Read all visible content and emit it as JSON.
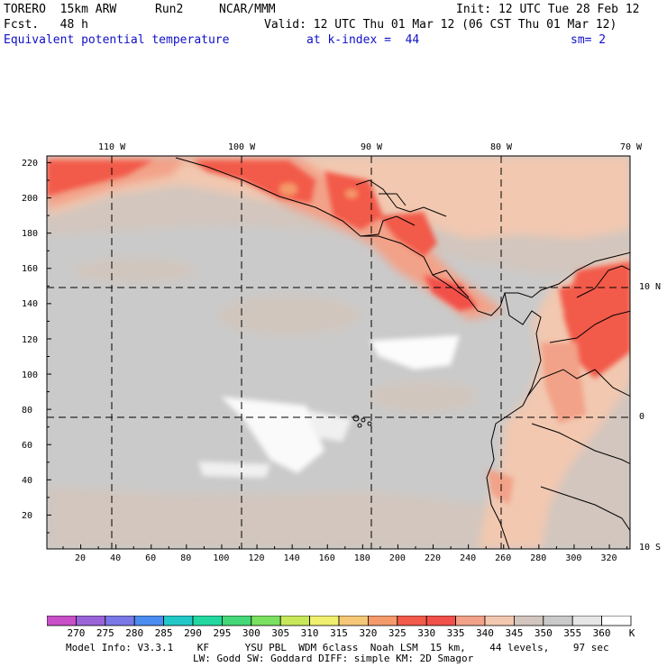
{
  "header": {
    "model": "TORERO  15km ARW",
    "run": "Run2",
    "org": "NCAR/MMM",
    "init": "Init: 12 UTC Tue 28 Feb 12",
    "fcst": "Fcst.   48 h",
    "valid": "Valid: 12 UTC Thu 01 Mar 12 (06 CST Thu 01 Mar 12)",
    "field": "Equivalent potential temperature",
    "level": "at k-index =  44",
    "smooth": "sm= 2"
  },
  "map": {
    "lon_labels": [
      "110 W",
      "100 W",
      "90 W",
      "80 W",
      "70 W"
    ],
    "lat_labels": [
      "10 N",
      "0",
      "10 S"
    ],
    "y_ticks": [
      "220",
      "200",
      "180",
      "160",
      "140",
      "120",
      "100",
      "80",
      "60",
      "40",
      "20"
    ],
    "x_ticks": [
      "20",
      "40",
      "60",
      "80",
      "100",
      "120",
      "140",
      "160",
      "180",
      "200",
      "220",
      "240",
      "260",
      "280",
      "300",
      "320"
    ]
  },
  "colorbar": {
    "labels": [
      "270",
      "275",
      "280",
      "285",
      "290",
      "295",
      "300",
      "305",
      "310",
      "315",
      "320",
      "325",
      "330",
      "335",
      "340",
      "345",
      "350",
      "355",
      "360"
    ],
    "unit": "K",
    "colors": [
      "#c84fc8",
      "#9a64d8",
      "#7a78e6",
      "#4a8cf0",
      "#22c8c8",
      "#22d8a0",
      "#44d878",
      "#7ae060",
      "#c8e85a",
      "#f0f070",
      "#f5c878",
      "#f59a6a",
      "#f25a4a",
      "#f2504a",
      "#f2a288",
      "#f2c8b0",
      "#d2c6be",
      "#cacaca",
      "#e6e6e6",
      "#ffffff"
    ]
  },
  "footer": {
    "line1": "Model Info: V3.3.1    KF      YSU PBL  WDM 6class  Noah LSM  15 km,    44 levels,    97 sec",
    "line2": "LW: Godd SW: Goddard DIFF: simple KM: 2D Smagor"
  }
}
